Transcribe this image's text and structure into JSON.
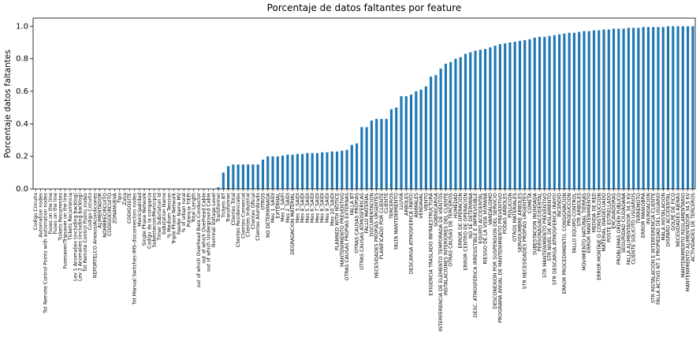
{
  "chart_data": {
    "type": "bar",
    "title": "Porcentaje  de datos faltantes por feature",
    "y_label": "Porcentaje datos faltantes",
    "color": "#1f77b4",
    "ylim": [
      0,
      1.05
    ],
    "yticks": [
      {
        "value": 0,
        "label": "0.0"
      },
      0.2,
      0.4,
      0.6,
      0.8,
      {
        "value": 1,
        "label": "1.0"
      }
    ],
    "categories": [
      "Codigo Circuito",
      "Automation nodes",
      "Tot Remote Control Points with automation nodes",
      "Fuses on the line",
      "Fuses on the line",
      "Tickets Recurrentes",
      "Fusesaver/Tripsaver on the line",
      "Tickets Recurrencia",
      "Lev 1 Anomalies (including backlog)",
      "Lev 2 Anomalies (including backlog)",
      "Tot Remote Control Points nodes",
      "Codigo Circuito",
      "REPORTELCO Anexos/Acondiciones",
      "ALIMENTADOR",
      "NOMBRECIRCUITO",
      "CODIGOCIRCUITO",
      "ZONANUEVA",
      "Tipo",
      "Zona",
      "CODIGOSITE",
      "Tot Manual Switches-IMS-disconnectors nodes",
      "Municipalidad",
      "Single Phase Network",
      "Codigo de la compania",
      "Subestacion/Municipio",
      "Timer Substation Id",
      "Substation Name",
      "% Medium Tension",
      "Triple Phase Network",
      "Feeder Name MV",
      "% of urban rural",
      "Potencia TIEPI",
      "Total Length",
      "out of which Overhead Bare Conductor",
      "out of which Overhead Cable",
      "out of which Underground Cable",
      "Nominal Voltage Level",
      "Transformer",
      "Tickets BT",
      "Transformer",
      "Clientes Total",
      "Clientes Residenciales",
      "Clientes Comercial",
      "Clientes Industrial",
      "Clientes Oficial",
      "Clientes Alumbrado",
      "OTROS",
      "NO DETERMINADA",
      "Mes 1_SAIDI",
      "EXTERNAL",
      "Mes 1_SAIFI",
      "Mes 2_SAIDI",
      "DEGRADACION MATERIAL",
      "Mes 3_SAIDI",
      "Mes 4_SAIDI",
      "Mes 5_SAIDI",
      "Mes 6_SAIDI",
      "Mes 7_SAIDI",
      "Mes 8_SAIDI",
      "Mes 9_SAIDI",
      "Mes 10_SAIDI",
      "PLANNED WITH NOTICE",
      "MANTENIMIENTO PREVENTIVO",
      "OTRAS CAUSAS PROPIAS EXTERNAS",
      "FALLA BT",
      "OTRAS CAUSAS PROPIAS",
      "OTRAS CAUSAS ATMOSFERICAS",
      "FALLO MATERIAL",
      "DOCUMENTACION",
      "NECESIDADES PROPIAS URGENTES",
      "PLANIFICADO POR CLIENTE",
      "CLIENTE",
      "TERCEROS",
      "FALTA MANTENIMIENTO",
      "LLUVIA",
      "ARBOLES",
      "DESCARGA ATMOSFERICA (RAYO)",
      "ANIMALES",
      "VENDAVAL",
      "VIENTO",
      "EXIGENCIA TRASLADO INFRAESTRUCTURA",
      "SOBRECARGA",
      "INTERFERENCIA DE ELEMENTO TEMPORADA DE VIENTOS",
      "INSTALACIONES INTERIORES DEL CLIENTE",
      "OTRAS CAUSAS DE TERCEROS",
      "HUMEDAD",
      "ERROR DE OPERACION",
      "ERROR CENTRO DE OPERACION",
      "NO SE DETERMINA",
      "DESC. ATMOSFERICA IRRESISTIBLE E IMPREVISIBLE",
      "EQUIPO ACCIDENTAL",
      "RIESGO DE LA VIDA HUMANA",
      "VANDALISMO",
      "DESCONEXION POR SUSPENSION DEL SERVICIO",
      "PROGRAMA ANUAL DE MANTENIMIENTO PREVENTIVO",
      "PODAS ARBOLES",
      "POLUCION",
      "OTROS MATERIALES",
      "SERVIDUMBRE ARBOLES",
      "STR NECESIDADES PROPIAS URGENTES",
      "COMETA",
      "SUBESTACION INUNDADA",
      "PERSONAS/ACCIDENTAL",
      "STR MANTENIMIENTO PREVENTIVO",
      "STR NIVEL DE AISLAMIENTO",
      "STR DESCARGA ATMOSFERICA (RAYO)",
      "INCENDIO",
      "ERROR PROCEDIMIENTO, CONSIGNACION",
      "PRODUCCION",
      "FALLO EQUIPO CONTROL",
      "STR ARBOLES",
      "MOVIMIENTO NATURAL TIERRAS",
      "ERROR MANTENIMIENTO",
      "MEDIDA DE RED",
      "ERROR MONTAJE O CONSTRUCCION",
      "MATERIAL INADECUADO",
      "POSTE ESTRELLADO",
      "EXCAVADORAS",
      "PROBLEMAS ORDEN PUBLICO",
      "SEGURIDAD CIUDADANA",
      "FALLA ALIMENTADOR 34.5 KV",
      "CLIENTE SOLICITO USUARIOS",
      "TERREMOTO",
      "ERROR MANIOBRA",
      "INUNDACION",
      "STR INSTALACION E INTERFERENCIA CLIENTE",
      "FALLA ACTIVO NT 1 PROPIEDAD DEL USUARIO",
      "MALA INSTALACION",
      "DISPARO ACCIDENTAL",
      "GOLPE DE FICO",
      "NECESIDADES AJENAS",
      "MANTENIMIENTO REGLAMENTARIO",
      "MANTENIMIENTO ALIMENTADOR 34.5 KV",
      "ACTIVIDADES DE TERCEROS"
    ],
    "values": [
      0,
      0,
      0,
      0,
      0,
      0,
      0,
      0,
      0,
      0,
      0,
      0,
      0,
      0,
      0,
      0,
      0,
      0,
      0,
      0,
      0,
      0,
      0,
      0,
      0,
      0,
      0,
      0,
      0,
      0,
      0,
      0,
      0,
      0,
      0,
      0,
      0,
      0.01,
      0.1,
      0.14,
      0.15,
      0.15,
      0.15,
      0.15,
      0.15,
      0.15,
      0.18,
      0.2,
      0.2,
      0.2,
      0.205,
      0.21,
      0.21,
      0.215,
      0.215,
      0.22,
      0.22,
      0.22,
      0.225,
      0.225,
      0.23,
      0.23,
      0.235,
      0.24,
      0.27,
      0.28,
      0.38,
      0.38,
      0.42,
      0.43,
      0.43,
      0.43,
      0.49,
      0.5,
      0.57,
      0.57,
      0.58,
      0.6,
      0.61,
      0.63,
      0.69,
      0.7,
      0.74,
      0.77,
      0.78,
      0.8,
      0.81,
      0.83,
      0.84,
      0.85,
      0.855,
      0.86,
      0.87,
      0.88,
      0.89,
      0.895,
      0.9,
      0.905,
      0.91,
      0.915,
      0.92,
      0.93,
      0.935,
      0.935,
      0.94,
      0.945,
      0.95,
      0.955,
      0.96,
      0.96,
      0.965,
      0.97,
      0.97,
      0.975,
      0.975,
      0.98,
      0.98,
      0.985,
      0.985,
      0.985,
      0.99,
      0.99,
      0.99,
      0.995,
      0.995,
      0.995,
      0.995,
      0.995,
      1,
      1,
      1,
      1,
      1,
      1
    ]
  }
}
